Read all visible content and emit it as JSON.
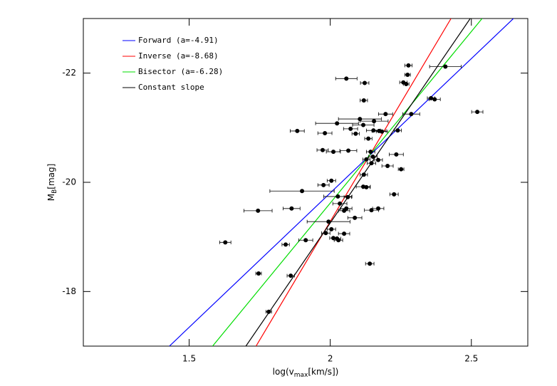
{
  "chart_data": {
    "type": "scatter",
    "xlabel": {
      "text": "log(v",
      "sub": "max",
      "tail": "[km/s])"
    },
    "ylabel": {
      "text": "M",
      "sub": "B",
      "tail": "[mag]"
    },
    "xlim": [
      1.125,
      2.7
    ],
    "ylim": [
      -17,
      -23
    ],
    "xticks": [
      1.5,
      2,
      2.5
    ],
    "yticks": [
      -22,
      -20,
      -18
    ],
    "points": {
      "color": "#000000",
      "x": [
        1.628,
        1.744,
        1.782,
        1.746,
        1.86,
        1.842,
        1.913,
        1.883,
        1.863,
        1.9,
        1.976,
        2.004,
        1.973,
        2.011,
        2.064,
        1.981,
        2.024,
        2.057,
        2.122,
        2.119,
        2.105,
        2.117,
        2.155,
        2.072,
        2.09,
        2.135,
        2.153,
        2.173,
        2.183,
        2.196,
        2.239,
        2.234,
        2.203,
        2.251,
        2.143,
        2.151,
        2.146,
        2.128,
        2.17,
        2.119,
        2.117,
        2.128,
        2.062,
        2.034,
        2.057,
        2.049,
        2.027,
        2.146,
        2.17,
        2.226,
        2.087,
        1.994,
        2.004,
        1.984,
        2.049,
        2.011,
        2.024,
        2.029,
        2.14,
        2.274,
        2.277,
        2.259,
        2.269,
        2.287,
        2.357,
        2.37,
        2.408,
        2.521
      ],
      "values": [
        -18.9,
        -19.48,
        -17.63,
        -18.33,
        -18.29,
        -18.86,
        -18.94,
        -20.94,
        -19.52,
        -19.84,
        -19.95,
        -20.03,
        -20.59,
        -20.56,
        -20.58,
        -20.9,
        -21.08,
        -21.9,
        -21.82,
        -21.5,
        -21.16,
        -21.05,
        -21.12,
        -20.98,
        -20.89,
        -20.8,
        -20.95,
        -20.94,
        -20.93,
        -21.25,
        -20.95,
        -20.51,
        -20.3,
        -20.24,
        -20.56,
        -20.47,
        -20.35,
        -20.42,
        -20.41,
        -20.14,
        -19.92,
        -19.91,
        -19.73,
        -19.61,
        -19.52,
        -19.48,
        -19.74,
        -19.49,
        -19.52,
        -19.78,
        -19.35,
        -19.28,
        -19.14,
        -19.07,
        -19.06,
        -18.98,
        -18.97,
        -18.94,
        -18.51,
        -21.97,
        -22.14,
        -21.83,
        -21.8,
        -21.25,
        -21.54,
        -21.52,
        -22.12,
        -21.29
      ],
      "xerr": [
        0.02,
        0.05,
        0.01,
        0.01,
        0.013,
        0.013,
        0.025,
        0.025,
        0.03,
        0.114,
        0.02,
        0.015,
        0.02,
        0.025,
        0.03,
        0.025,
        0.076,
        0.038,
        0.015,
        0.013,
        0.076,
        0.038,
        0.05,
        0.025,
        0.013,
        0.013,
        0.025,
        0.025,
        0.02,
        0.025,
        0.013,
        0.025,
        0.02,
        0.01,
        0.015,
        0.015,
        0.015,
        0.013,
        0.015,
        0.013,
        0.025,
        0.013,
        0.013,
        0.025,
        0.02,
        0.02,
        0.05,
        0.025,
        0.02,
        0.015,
        0.025,
        0.076,
        0.015,
        0.015,
        0.02,
        0.013,
        0.013,
        0.015,
        0.015,
        0.01,
        0.013,
        0.013,
        0.01,
        0.03,
        0.013,
        0.02,
        0.056,
        0.02
      ]
    },
    "lines": [
      {
        "name": "Forward (a=-4.91)",
        "color": "#0000ff",
        "x": [
          1.43,
          2.7
        ],
        "values": [
          -17.0,
          -23.25
        ]
      },
      {
        "name": "Inverse (a=-8.68)",
        "color": "#ff0000",
        "x": [
          1.737,
          2.428
        ],
        "values": [
          -17.0,
          -23.0
        ]
      },
      {
        "name": "Bisector (a=-6.28)",
        "color": "#00dd00",
        "x": [
          1.583,
          2.538
        ],
        "values": [
          -17.0,
          -23.0
        ]
      },
      {
        "name": "Constant slope",
        "color": "#000000",
        "x": [
          1.701,
          2.496
        ],
        "values": [
          -17.0,
          -23.0
        ]
      }
    ]
  }
}
